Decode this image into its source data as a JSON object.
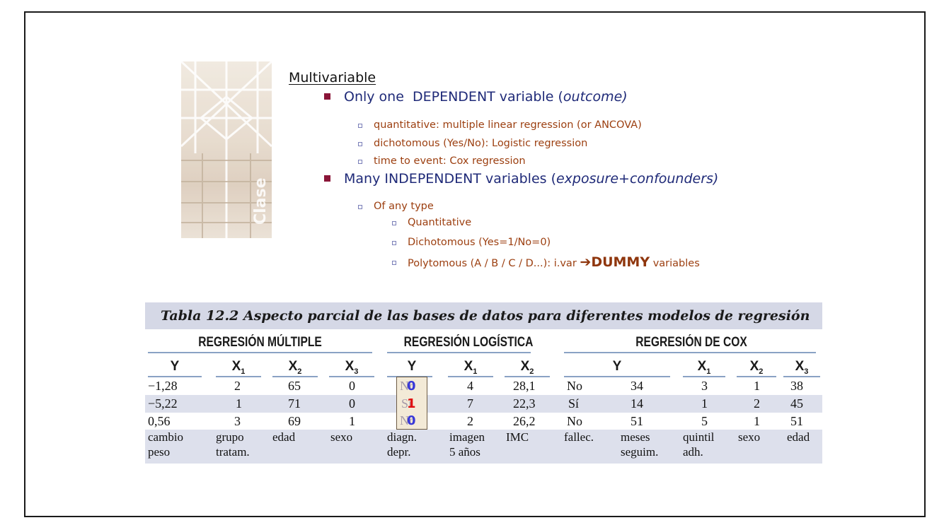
{
  "photo": {
    "label": "Clase"
  },
  "outline": {
    "heading": "Multivariable",
    "dependent": {
      "text_before": "Only one  DEPENDENT variable (",
      "text_italic": "outcome)",
      "items": [
        "quantitative: multiple linear regression (or ANCOVA)",
        "dichotomous (Yes/No): Logistic regression",
        "time to event: Cox regression"
      ]
    },
    "independent": {
      "text_before": "Many INDEPENDENT variables (",
      "text_italic": "exposure+confounders)",
      "sub": "Of any type",
      "items": [
        "Quantitative",
        "Dichotomous (Yes=1/No=0)"
      ],
      "poly_prefix": "Polytomous (A / B / C / D...): i.var ",
      "poly_arrow": "➔",
      "poly_dummy": "DUMMY",
      "poly_suffix": " variables"
    }
  },
  "table": {
    "title": "Tabla 12.2  Aspecto parcial de las bases de datos para diferentes modelos de regresión",
    "groups": [
      "REGRESIÓN MÚLTIPLE",
      "REGRESIÓN LOGÍSTICA",
      "REGRESIÓN DE COX"
    ],
    "columns": {
      "multiple": [
        "Y",
        "X",
        "X",
        "X"
      ],
      "multiple_sub": [
        "",
        "1",
        "2",
        "3"
      ],
      "logistic": [
        "Y",
        "X",
        "X"
      ],
      "logistic_sub": [
        "",
        "1",
        "2"
      ],
      "cox": [
        "Y",
        "X",
        "X",
        "X"
      ],
      "cox_sub": [
        "",
        "1",
        "2",
        "3"
      ]
    },
    "rows": [
      {
        "m": [
          "−1,28",
          "2",
          "65",
          "0"
        ],
        "l_ghost": "No",
        "l_value": "0",
        "l": [
          "4",
          "28,1"
        ],
        "c": [
          "No",
          "34",
          "3",
          "1",
          "38"
        ]
      },
      {
        "m": [
          "−5,22",
          "1",
          "71",
          "0"
        ],
        "l_ghost": "Sí",
        "l_value": "1",
        "l": [
          "7",
          "22,3"
        ],
        "c": [
          "Sí",
          "14",
          "1",
          "2",
          "45"
        ]
      },
      {
        "m": [
          "0,56",
          "3",
          "69",
          "1"
        ],
        "l_ghost": "No",
        "l_value": "0",
        "l": [
          "2",
          "26,2"
        ],
        "c": [
          "No",
          "51",
          "5",
          "1",
          "51"
        ]
      }
    ],
    "footer": [
      [
        "cambio",
        "peso"
      ],
      [
        "grupo",
        "tratam."
      ],
      [
        "edad",
        ""
      ],
      [
        "sexo",
        ""
      ],
      [
        "diagn.",
        "depr."
      ],
      [
        "imagen",
        "5 años"
      ],
      [
        "IMC",
        ""
      ],
      [
        "fallec.",
        ""
      ],
      [
        "meses",
        "seguim."
      ],
      [
        "quintil",
        "adh."
      ],
      [
        "sexo",
        ""
      ],
      [
        "edad",
        ""
      ]
    ]
  }
}
